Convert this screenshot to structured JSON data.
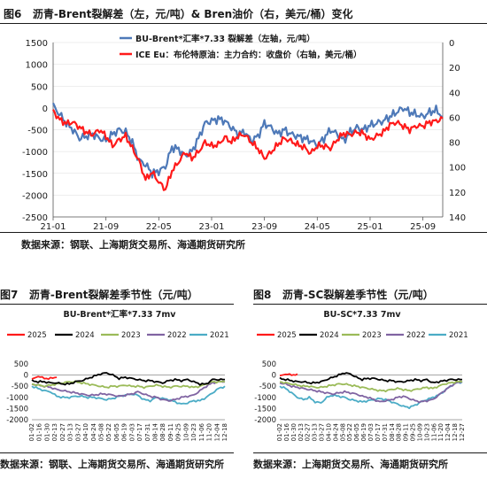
{
  "figures": [
    {
      "number": "图6",
      "title": "沥青-Brent裂解差（左，元/吨）& Bren油价（右，美元/桶）变化"
    },
    {
      "number": "图7",
      "title": "沥青-Brent裂解差季节性（元/吨）"
    },
    {
      "number": "图8",
      "title": "沥青-SC裂解差季节性（元/吨）"
    }
  ],
  "sources": [
    "数据来源：钢联、上海期货交易所、海通期货研究所",
    "数据来源：钢联、上海期货交易所、海通期货研究所",
    "数据来源：上海期货交易所、海通期货研究所"
  ],
  "colors": {
    "blue": "#4e79b8",
    "red": "#ff1a1a",
    "black": "#000000",
    "green": "#9bbb59",
    "purple": "#8064a2",
    "cyan": "#4bacc6",
    "grid": "#dcdcdc",
    "text": "#1a1a1a"
  },
  "chart_data": [
    {
      "type": "line",
      "x": [
        "2021-01",
        "2021-02",
        "2021-03",
        "2021-04",
        "2021-05",
        "2021-06",
        "2021-07",
        "2021-08",
        "2021-09",
        "2021-10",
        "2021-11",
        "2021-12",
        "2022-01",
        "2022-02",
        "2022-03",
        "2022-04",
        "2022-05",
        "2022-06",
        "2022-07",
        "2022-08",
        "2022-09",
        "2022-10",
        "2022-11",
        "2022-12",
        "2023-01",
        "2023-02",
        "2023-03",
        "2023-04",
        "2023-05",
        "2023-06",
        "2023-07",
        "2023-08",
        "2023-09",
        "2023-10",
        "2023-11",
        "2023-12",
        "2024-01",
        "2024-02",
        "2024-03",
        "2024-04",
        "2024-05",
        "2024-06",
        "2024-07",
        "2024-08",
        "2024-09",
        "2024-10",
        "2024-11",
        "2024-12",
        "2025-01",
        "2025-02",
        "2025-03",
        "2025-04",
        "2025-05",
        "2025-06",
        "2025-07",
        "2025-08",
        "2025-09",
        "2025-10",
        "2025-11",
        "2025-12"
      ],
      "x_ticks": [
        "21-01",
        "21-09",
        "22-05",
        "23-01",
        "23-09",
        "24-05",
        "25-01",
        "25-09"
      ],
      "series": [
        {
          "name": "BU-Brent*汇率*7.33 裂解差（左轴，元/吨）",
          "axis": "left",
          "color": "blue",
          "values": [
            50,
            -150,
            -350,
            -500,
            -700,
            -650,
            -600,
            -700,
            -750,
            -600,
            -500,
            -550,
            -800,
            -1200,
            -1300,
            -1500,
            -1450,
            -1350,
            -900,
            -950,
            -1100,
            -1000,
            -700,
            -350,
            -300,
            -250,
            -300,
            -450,
            -600,
            -550,
            -750,
            -650,
            -350,
            -450,
            -600,
            -500,
            -600,
            -650,
            -700,
            -750,
            -850,
            -700,
            -500,
            -600,
            -750,
            -550,
            -450,
            -500,
            -400,
            -350,
            -300,
            -200,
            -100,
            0,
            -100,
            -150,
            -200,
            -100,
            -50,
            -200
          ]
        },
        {
          "name": "ICE Eu：布伦特原油：主力合约：收盘价（右轴，美元/桶）",
          "axis": "right",
          "color": "red",
          "values": [
            55,
            62,
            65,
            64,
            68,
            72,
            74,
            70,
            75,
            83,
            78,
            75,
            85,
            95,
            110,
            104,
            112,
            118,
            103,
            96,
            88,
            93,
            88,
            80,
            83,
            82,
            76,
            80,
            75,
            74,
            80,
            85,
            93,
            88,
            82,
            77,
            79,
            82,
            84,
            89,
            83,
            83,
            85,
            78,
            73,
            74,
            72,
            73,
            78,
            75,
            72,
            66,
            64,
            67,
            70,
            67,
            67,
            64,
            63,
            61
          ]
        }
      ],
      "xlim": [
        "2021-01",
        "2025-12"
      ],
      "ylim_left": [
        -2500,
        1500
      ],
      "y_ticks_left": [
        -2500,
        -2000,
        -1500,
        -1000,
        -500,
        0,
        500,
        1000,
        1500
      ],
      "ylim_right": [
        140,
        0
      ],
      "y_ticks_right": [
        0,
        20,
        40,
        60,
        80,
        100,
        120,
        140
      ],
      "legend": "top-center"
    },
    {
      "type": "line",
      "title": "BU-Brent*汇率*7.33 7mv",
      "x_ticks": [
        "01-02",
        "01-16",
        "01-30",
        "02-13",
        "02-27",
        "03-13",
        "03-27",
        "04-10",
        "04-24",
        "05-08",
        "05-22",
        "06-05",
        "06-19",
        "07-03",
        "07-17",
        "07-31",
        "08-14",
        "08-28",
        "09-11",
        "09-25",
        "10-09",
        "10-23",
        "11-06",
        "11-20",
        "12-04",
        "12-18"
      ],
      "series": [
        {
          "name": "2025",
          "color": "red",
          "values": [
            -200,
            -50,
            -150,
            -150,
            -100
          ]
        },
        {
          "name": "2024",
          "color": "black",
          "values": [
            -250,
            -300,
            -300,
            -350,
            -350,
            -400,
            -400,
            -300,
            -250,
            -150,
            -50,
            50,
            100,
            0,
            -150,
            -100,
            -150,
            -200,
            -250,
            -250,
            -300,
            -350,
            -250,
            -200,
            -250,
            -200,
            -300,
            -400,
            -400,
            -200,
            -200,
            -200
          ]
        },
        {
          "name": "2023",
          "color": "green",
          "values": [
            -400,
            -450,
            -500,
            -450,
            -400,
            -350,
            -300,
            -300,
            -350,
            -400,
            -450,
            -500,
            -550,
            -500,
            -500,
            -450,
            -500,
            -500,
            -550,
            -500,
            -450,
            -500,
            -550,
            -500,
            -500,
            -500,
            -550,
            -500,
            -400,
            -300,
            -300,
            -300
          ]
        },
        {
          "name": "2022",
          "color": "purple",
          "values": [
            -400,
            -450,
            -500,
            -550,
            -650,
            -700,
            -750,
            -800,
            -850,
            -900,
            -900,
            -850,
            -850,
            -900,
            -950,
            -900,
            -850,
            -750,
            -850,
            -950,
            -1000,
            -1100,
            -1150,
            -1100,
            -1000,
            -950,
            -900,
            -700,
            -500,
            -350,
            -300,
            -300
          ]
        },
        {
          "name": "2021",
          "color": "cyan",
          "values": [
            -500,
            -600,
            -700,
            -750,
            -950,
            -1000,
            -1000,
            -950,
            -950,
            -1000,
            -1000,
            -1050,
            -1100,
            -1050,
            -950,
            -900,
            -850,
            -900,
            -1100,
            -1150,
            -1000,
            -1050,
            -1100,
            -1200,
            -1300,
            -1250,
            -1150,
            -1150,
            -1000,
            -800,
            -600,
            -500
          ]
        }
      ],
      "ylim": [
        -2000,
        500
      ],
      "y_ticks": [
        -2000,
        -1500,
        -1000,
        -500,
        0,
        500
      ],
      "legend": "top"
    },
    {
      "type": "line",
      "title": "BU-SC*7.33 7mv",
      "x_ticks": [
        "01-02",
        "01-16",
        "01-30",
        "02-13",
        "02-27",
        "03-13",
        "03-27",
        "04-10",
        "04-24",
        "05-08",
        "05-22",
        "06-05",
        "06-19",
        "07-03",
        "07-17",
        "07-31",
        "08-14",
        "08-28",
        "09-11",
        "09-25",
        "10-09",
        "10-23",
        "11-06",
        "11-20",
        "12-04",
        "12-18",
        "12-27"
      ],
      "series": [
        {
          "name": "2025",
          "color": "red",
          "values": [
            -50,
            50,
            0,
            50
          ]
        },
        {
          "name": "2024",
          "color": "black",
          "values": [
            -150,
            -200,
            -250,
            -300,
            -300,
            -350,
            -350,
            -300,
            -200,
            -100,
            0,
            100,
            50,
            -100,
            -200,
            -150,
            -150,
            -200,
            -250,
            -250,
            -300,
            -300,
            -250,
            -200,
            -250,
            -200,
            -350,
            -300,
            -250,
            -200,
            -200,
            -200
          ]
        },
        {
          "name": "2023",
          "color": "green",
          "values": [
            -300,
            -350,
            -400,
            -450,
            -500,
            -500,
            -550,
            -550,
            -500,
            -450,
            -400,
            -400,
            -450,
            -500,
            -550,
            -600,
            -650,
            -700,
            -700,
            -650,
            -600,
            -650,
            -700,
            -650,
            -600,
            -550,
            -600,
            -500,
            -400,
            -350,
            -300,
            -300
          ]
        },
        {
          "name": "2022",
          "color": "purple",
          "values": [
            -350,
            -400,
            -500,
            -550,
            -600,
            -650,
            -700,
            -750,
            -800,
            -850,
            -800,
            -750,
            -800,
            -850,
            -950,
            -1000,
            -1100,
            -1200,
            -1150,
            -1100,
            -1000,
            -950,
            -1050,
            -1150,
            -1200,
            -1150,
            -1100,
            -900,
            -700,
            -500,
            -350,
            -300
          ]
        },
        {
          "name": "2021",
          "color": "cyan",
          "values": [
            -500,
            -600,
            -800,
            -1000,
            -1100,
            -1000,
            -1200,
            -1250,
            -1000,
            -900,
            -950,
            -1000,
            -1100,
            -1150,
            -1200,
            -1150,
            -1100,
            -1050,
            -1100,
            -1200,
            -1300,
            -1400,
            -1450,
            -1350,
            -1200,
            -1100,
            -1000,
            -900,
            -700,
            -500,
            -350,
            -300
          ]
        }
      ],
      "ylim": [
        -2000,
        500
      ],
      "y_ticks": [
        -2000,
        -1500,
        -1000,
        -500,
        0,
        500
      ],
      "legend": "top"
    }
  ]
}
